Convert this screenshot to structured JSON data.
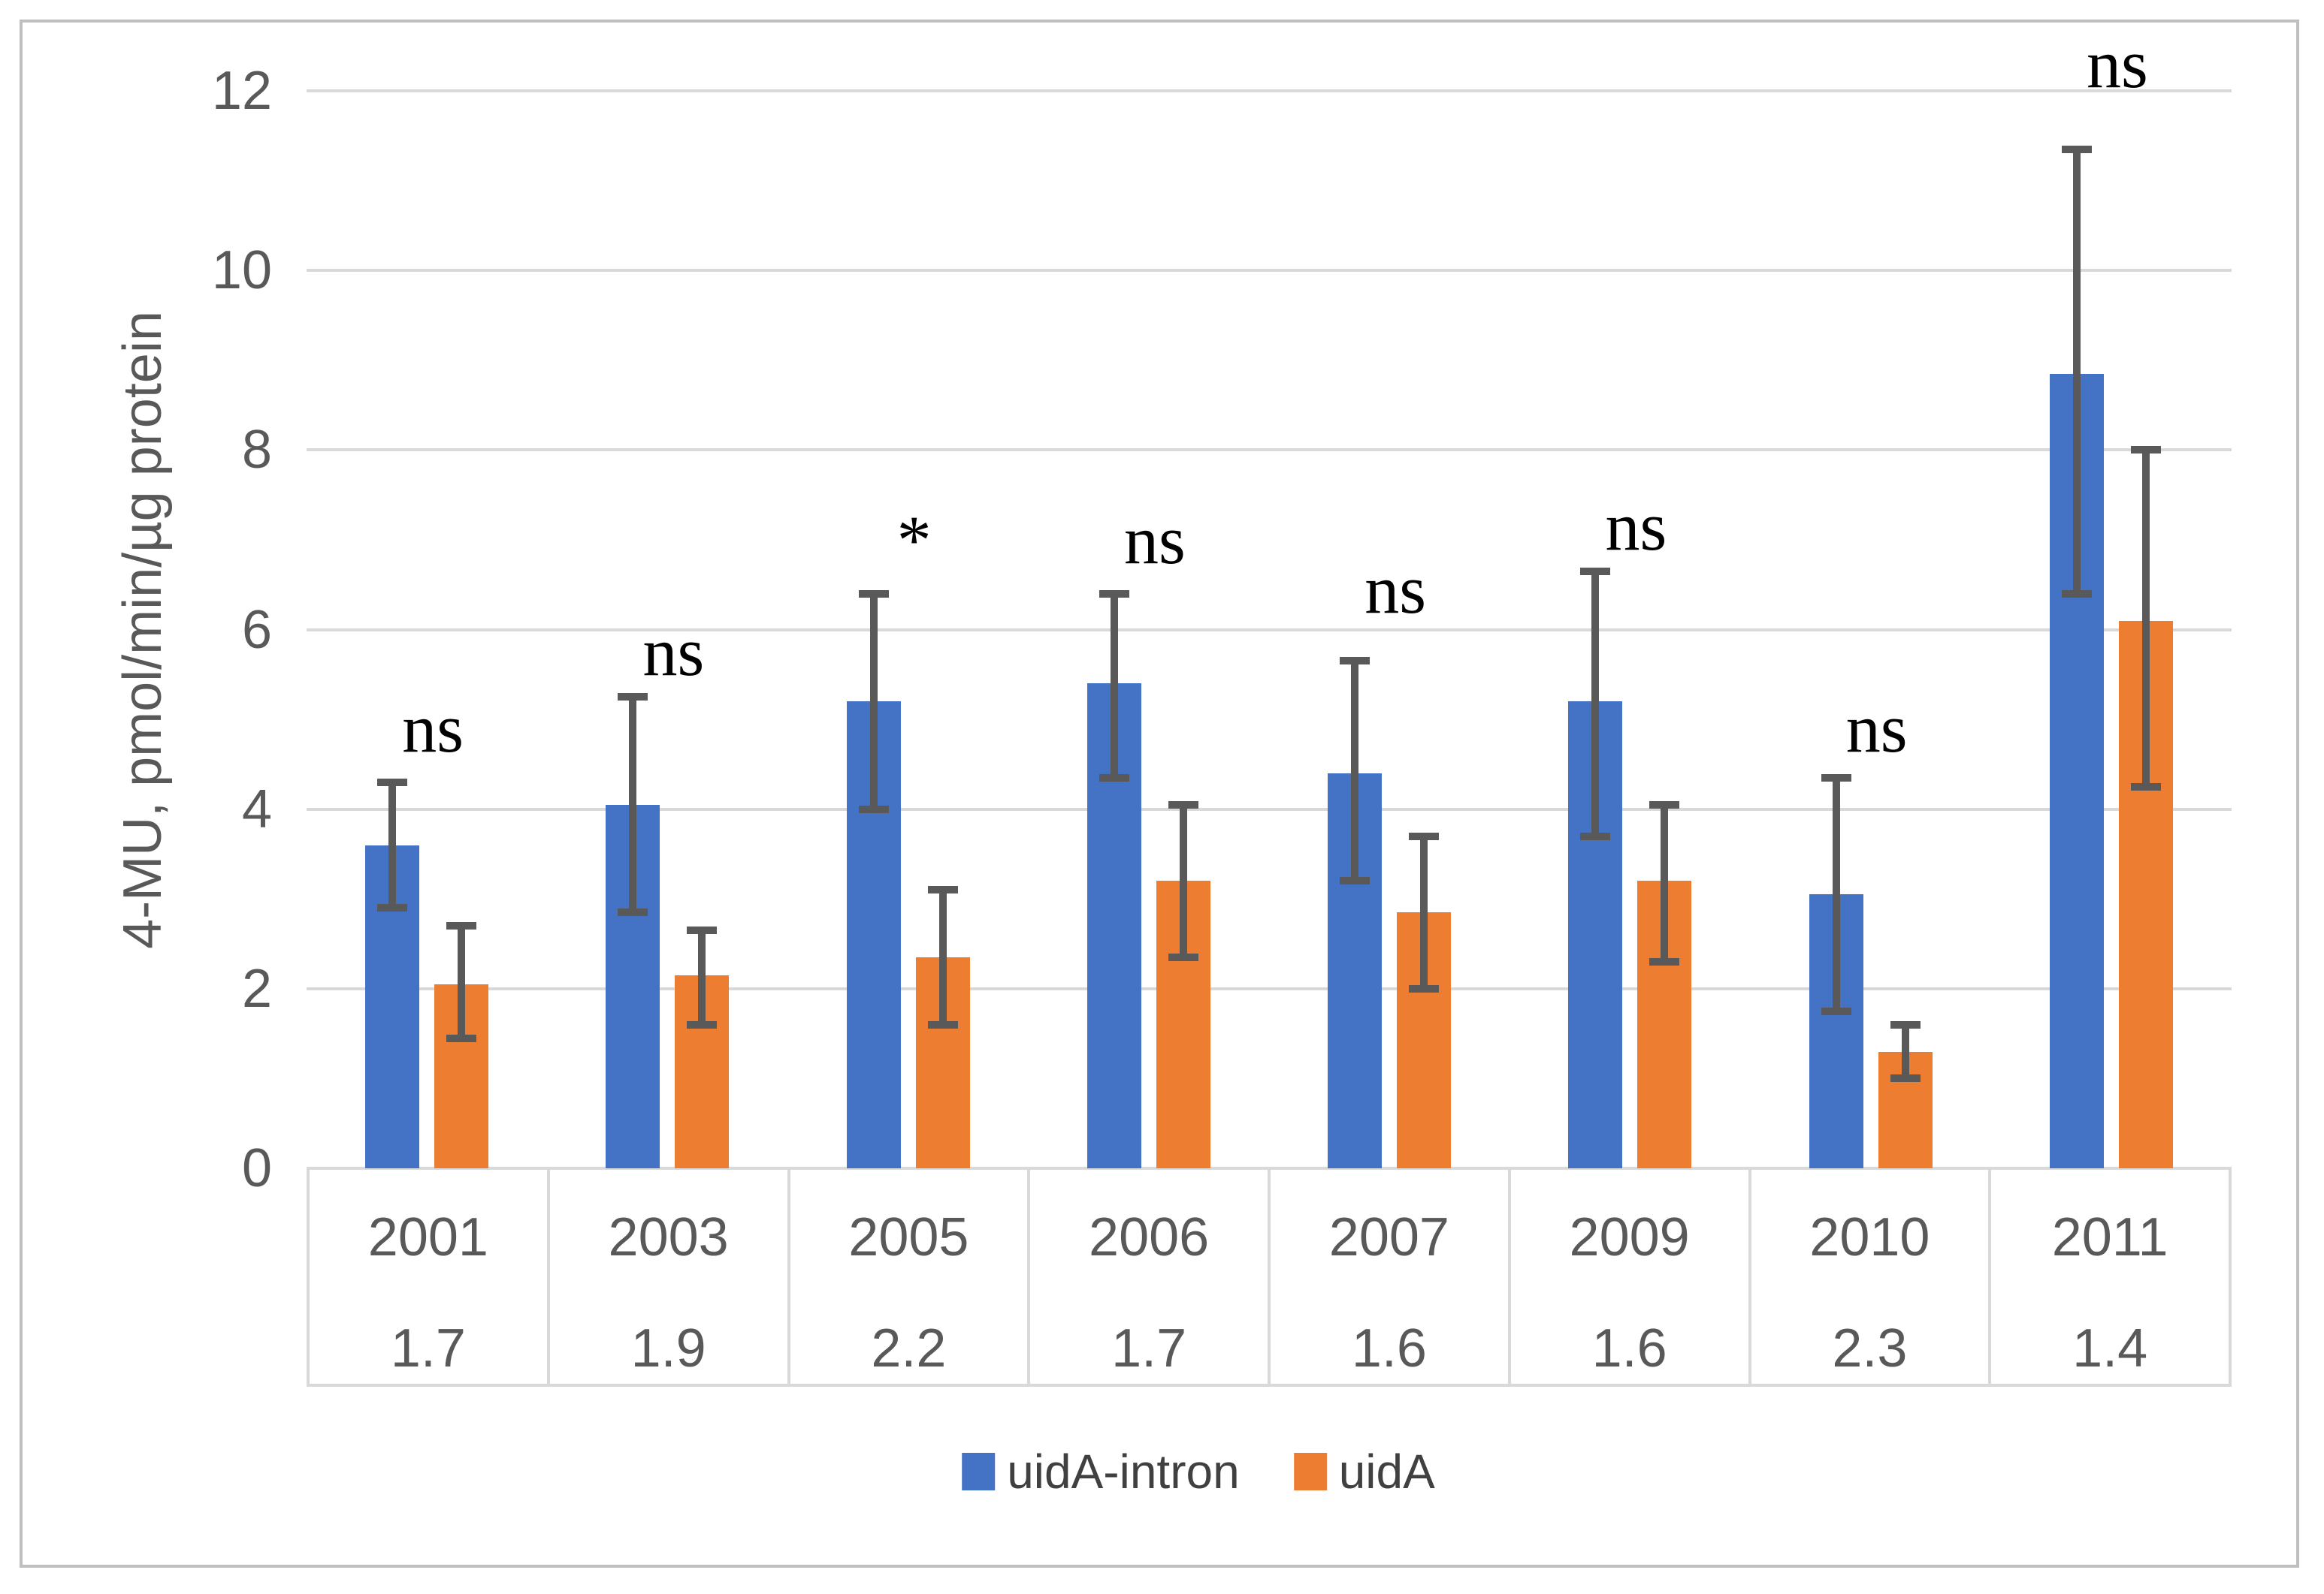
{
  "figure": {
    "background": "#FFFFFF",
    "border_color": "#BFBFBF"
  },
  "y_axis": {
    "title": "4-MU, pmol/min/µg protein",
    "tick_labels": [
      "0",
      "2",
      "4",
      "6",
      "8",
      "10",
      "12"
    ],
    "tick_values": [
      0,
      2,
      4,
      6,
      8,
      10,
      12
    ],
    "text_color": "#595959",
    "gridline_color": "#D9D9D9"
  },
  "chart_data": {
    "type": "bar",
    "title": "",
    "xlabel": "",
    "ylabel": "4-MU, pmol/min/µg protein",
    "ylim": [
      0,
      12
    ],
    "grid": true,
    "legend_position": "bottom",
    "categories": [
      "2001",
      "2003",
      "2005",
      "2006",
      "2007",
      "2009",
      "2010",
      "2011"
    ],
    "category_sublabels": [
      "1.7",
      "1.9",
      "2.2",
      "1.7",
      "1.6",
      "1.6",
      "2.3",
      "1.4"
    ],
    "series": [
      {
        "name": "uidA-intron",
        "color": "#4472C4",
        "values": [
          3.6,
          4.05,
          5.2,
          5.4,
          4.4,
          5.2,
          3.05,
          8.85
        ],
        "error_low": [
          2.9,
          2.85,
          4.0,
          4.35,
          3.2,
          3.7,
          1.75,
          6.4
        ],
        "error_high": [
          4.3,
          5.25,
          6.4,
          6.4,
          5.65,
          6.65,
          4.35,
          11.35
        ]
      },
      {
        "name": "uidA",
        "color": "#ED7D31",
        "values": [
          2.05,
          2.15,
          2.35,
          3.2,
          2.85,
          3.2,
          1.3,
          6.1
        ],
        "error_low": [
          1.45,
          1.6,
          1.6,
          2.35,
          2.0,
          2.3,
          1.0,
          4.25
        ],
        "error_high": [
          2.7,
          2.65,
          3.1,
          4.05,
          3.7,
          4.05,
          1.6,
          8.0
        ]
      }
    ],
    "annotations": [
      {
        "label": "ns",
        "y": 4.9
      },
      {
        "label": "ns",
        "y": 5.75
      },
      {
        "label": "*",
        "y": 7.0
      },
      {
        "label": "ns",
        "y": 7.0
      },
      {
        "label": "ns",
        "y": 6.45
      },
      {
        "label": "ns",
        "y": 7.15
      },
      {
        "label": "ns",
        "y": 4.9
      },
      {
        "label": "ns",
        "y": 12.3
      }
    ],
    "error_bar_color": "#595959"
  },
  "legend": {
    "items": [
      {
        "label": "uidA-intron",
        "color": "#4472C4"
      },
      {
        "label": "uidA",
        "color": "#ED7D31"
      }
    ]
  }
}
